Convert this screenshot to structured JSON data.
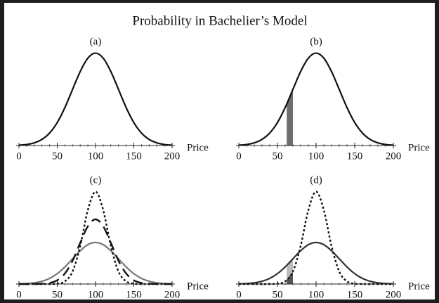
{
  "title": "Probability in Bachelier’s Model",
  "chart_data": [
    {
      "type": "line",
      "title": "(a)",
      "xlabel": "Price",
      "x": [
        0,
        10,
        20,
        30,
        40,
        50,
        60,
        70,
        80,
        90,
        100,
        110,
        120,
        130,
        140,
        150,
        160,
        170,
        180,
        190,
        200
      ],
      "xlim": [
        0,
        200
      ],
      "ylim": [
        0,
        1.05
      ],
      "xticks": [
        0,
        50,
        100,
        150,
        200
      ],
      "xminorticks": [
        0,
        10,
        20,
        30,
        40,
        50,
        60,
        70,
        80,
        90,
        100,
        110,
        120,
        130,
        140,
        150,
        160,
        170,
        180,
        190,
        200
      ],
      "series": [
        {
          "color": "#111111",
          "dash": "solid",
          "values": [
            0.004,
            0.011,
            0.029,
            0.066,
            0.135,
            0.249,
            0.411,
            0.607,
            0.801,
            0.946,
            1,
            0.946,
            0.801,
            0.607,
            0.411,
            0.249,
            0.135,
            0.066,
            0.029,
            0.011,
            0.004
          ]
        }
      ],
      "bands": []
    },
    {
      "type": "line",
      "title": "(b)",
      "xlabel": "Price",
      "x": [
        0,
        10,
        20,
        30,
        40,
        50,
        60,
        70,
        80,
        90,
        100,
        110,
        120,
        130,
        140,
        150,
        160,
        170,
        180,
        190,
        200
      ],
      "xlim": [
        0,
        200
      ],
      "ylim": [
        0,
        1.05
      ],
      "xticks": [
        0,
        50,
        100,
        150,
        200
      ],
      "xminorticks": [
        0,
        10,
        20,
        30,
        40,
        50,
        60,
        70,
        80,
        90,
        100,
        110,
        120,
        130,
        140,
        150,
        160,
        170,
        180,
        190,
        200
      ],
      "series": [
        {
          "color": "#111111",
          "dash": "solid",
          "values": [
            0.004,
            0.011,
            0.029,
            0.066,
            0.135,
            0.249,
            0.411,
            0.607,
            0.801,
            0.946,
            1,
            0.946,
            0.801,
            0.607,
            0.411,
            0.249,
            0.135,
            0.066,
            0.029,
            0.011,
            0.004
          ]
        }
      ],
      "bands": [
        {
          "x": [
            62,
            70
          ],
          "under": 0,
          "color": "#6e6e6e"
        }
      ]
    },
    {
      "type": "line",
      "title": "(c)",
      "xlabel": "Price",
      "x": [
        0,
        10,
        20,
        30,
        40,
        50,
        60,
        70,
        80,
        90,
        100,
        110,
        120,
        130,
        140,
        150,
        160,
        170,
        180,
        190,
        200
      ],
      "xlim": [
        0,
        200
      ],
      "ylim": [
        0,
        1.05
      ],
      "xticks": [
        0,
        50,
        100,
        150,
        200
      ],
      "xminorticks": [
        0,
        10,
        20,
        30,
        40,
        50,
        60,
        70,
        80,
        90,
        100,
        110,
        120,
        130,
        140,
        150,
        160,
        170,
        180,
        190,
        200
      ],
      "series": [
        {
          "color": "#777777",
          "dash": "solid",
          "values": [
            0.002,
            0.005,
            0.013,
            0.03,
            0.061,
            0.112,
            0.185,
            0.273,
            0.36,
            0.426,
            0.45,
            0.426,
            0.36,
            0.273,
            0.185,
            0.112,
            0.061,
            0.03,
            0.013,
            0.005,
            0.002
          ]
        },
        {
          "color": "#111111",
          "dash": "dashed",
          "values": [
            0,
            0,
            0,
            0.003,
            0.012,
            0.041,
            0.114,
            0.252,
            0.445,
            0.625,
            0.7,
            0.625,
            0.445,
            0.252,
            0.114,
            0.041,
            0.012,
            0.003,
            0,
            0,
            0
          ]
        },
        {
          "color": "#111111",
          "dash": "dotted",
          "values": [
            0,
            0,
            0,
            0,
            0,
            0.004,
            0.029,
            0.135,
            0.411,
            0.801,
            1,
            0.801,
            0.411,
            0.135,
            0.029,
            0.004,
            0,
            0,
            0,
            0,
            0
          ]
        }
      ],
      "bands": []
    },
    {
      "type": "line",
      "title": "(d)",
      "xlabel": "Price",
      "x": [
        0,
        10,
        20,
        30,
        40,
        50,
        60,
        70,
        80,
        90,
        100,
        110,
        120,
        130,
        140,
        150,
        160,
        170,
        180,
        190,
        200
      ],
      "xlim": [
        0,
        200
      ],
      "ylim": [
        0,
        1.05
      ],
      "xticks": [
        0,
        50,
        100,
        150,
        200
      ],
      "xminorticks": [
        0,
        10,
        20,
        30,
        40,
        50,
        60,
        70,
        80,
        90,
        100,
        110,
        120,
        130,
        140,
        150,
        160,
        170,
        180,
        190,
        200
      ],
      "series": [
        {
          "color": "#333333",
          "dash": "solid",
          "values": [
            0.002,
            0.005,
            0.013,
            0.03,
            0.061,
            0.112,
            0.185,
            0.273,
            0.36,
            0.426,
            0.45,
            0.426,
            0.36,
            0.273,
            0.185,
            0.112,
            0.061,
            0.03,
            0.013,
            0.005,
            0.002
          ]
        },
        {
          "color": "#111111",
          "dash": "dotted",
          "values": [
            0,
            0,
            0,
            0,
            0,
            0.004,
            0.029,
            0.135,
            0.411,
            0.801,
            1,
            0.801,
            0.411,
            0.135,
            0.029,
            0.004,
            0,
            0,
            0,
            0,
            0
          ]
        }
      ],
      "bands": [
        {
          "x": [
            62,
            70
          ],
          "under": 0,
          "color": "#bbbbbb"
        },
        {
          "x": [
            62,
            70
          ],
          "under": 1,
          "color": "#555555"
        }
      ]
    }
  ]
}
